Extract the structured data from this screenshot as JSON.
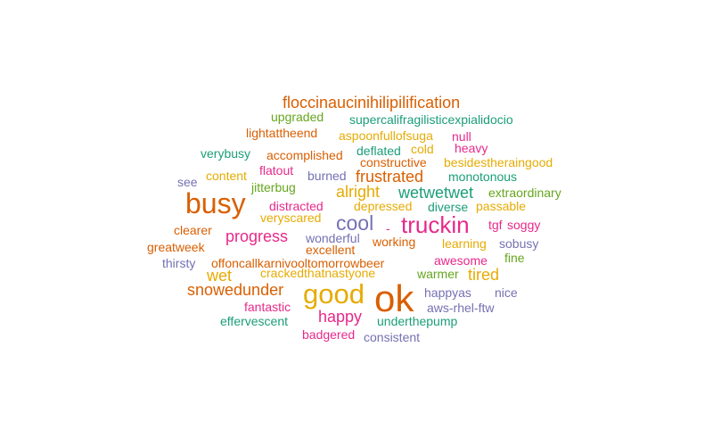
{
  "palette": {
    "orange": "#d95f02",
    "teal": "#1b9e77",
    "purple": "#7570b3",
    "pink": "#e7298a",
    "green": "#66a61e",
    "gold": "#e6ab02"
  },
  "words": [
    {
      "text": "floccinaucinihilipilification",
      "color": "orange"
    },
    {
      "text": "upgraded",
      "color": "green"
    },
    {
      "text": "supercalifragilisticexpialidocio",
      "color": "teal"
    },
    {
      "text": "lightattheend",
      "color": "orange"
    },
    {
      "text": "aspoonfullofsuga",
      "color": "gold"
    },
    {
      "text": "null",
      "color": "pink"
    },
    {
      "text": "verybusy",
      "color": "teal"
    },
    {
      "text": "accomplished",
      "color": "orange"
    },
    {
      "text": "deflated",
      "color": "teal"
    },
    {
      "text": "cold",
      "color": "gold"
    },
    {
      "text": "heavy",
      "color": "pink"
    },
    {
      "text": "flatout",
      "color": "pink"
    },
    {
      "text": "constructive",
      "color": "orange"
    },
    {
      "text": "besidestheraingood",
      "color": "gold"
    },
    {
      "text": "content",
      "color": "gold"
    },
    {
      "text": "burned",
      "color": "purple"
    },
    {
      "text": "frustrated",
      "color": "orange"
    },
    {
      "text": "monotonous",
      "color": "teal"
    },
    {
      "text": "see",
      "color": "purple"
    },
    {
      "text": "jitterbug",
      "color": "green"
    },
    {
      "text": "alright",
      "color": "gold"
    },
    {
      "text": "wetwetwet",
      "color": "teal"
    },
    {
      "text": "extraordinary",
      "color": "green"
    },
    {
      "text": "busy",
      "color": "orange"
    },
    {
      "text": "distracted",
      "color": "pink"
    },
    {
      "text": "depressed",
      "color": "gold"
    },
    {
      "text": "diverse",
      "color": "teal"
    },
    {
      "text": "passable",
      "color": "gold"
    },
    {
      "text": "veryscared",
      "color": "gold"
    },
    {
      "text": "cool",
      "color": "purple"
    },
    {
      "text": "truckin",
      "color": "pink"
    },
    {
      "text": "tgf",
      "color": "pink"
    },
    {
      "text": "soggy",
      "color": "pink"
    },
    {
      "text": "clearer",
      "color": "orange"
    },
    {
      "text": "-",
      "color": "pink"
    },
    {
      "text": "progress",
      "color": "pink"
    },
    {
      "text": "wonderful",
      "color": "purple"
    },
    {
      "text": "working",
      "color": "orange"
    },
    {
      "text": "learning",
      "color": "gold"
    },
    {
      "text": "sobusy",
      "color": "purple"
    },
    {
      "text": "greatweek",
      "color": "orange"
    },
    {
      "text": "excellent",
      "color": "orange"
    },
    {
      "text": "fine",
      "color": "green"
    },
    {
      "text": "thirsty",
      "color": "purple"
    },
    {
      "text": "offoncallkarnivooltomorrowbeer",
      "color": "orange"
    },
    {
      "text": "awesome",
      "color": "pink"
    },
    {
      "text": "wet",
      "color": "gold"
    },
    {
      "text": "crackedthatnastyone",
      "color": "gold"
    },
    {
      "text": "warmer",
      "color": "green"
    },
    {
      "text": "tired",
      "color": "gold"
    },
    {
      "text": "snowedunder",
      "color": "orange"
    },
    {
      "text": "good",
      "color": "gold"
    },
    {
      "text": "ok",
      "color": "orange"
    },
    {
      "text": "happyas",
      "color": "purple"
    },
    {
      "text": "nice",
      "color": "purple"
    },
    {
      "text": "fantastic",
      "color": "pink"
    },
    {
      "text": "aws-rhel-ftw",
      "color": "purple"
    },
    {
      "text": "happy",
      "color": "pink"
    },
    {
      "text": "effervescent",
      "color": "teal"
    },
    {
      "text": "underthepump",
      "color": "teal"
    },
    {
      "text": "badgered",
      "color": "pink"
    },
    {
      "text": "consistent",
      "color": "purple"
    }
  ]
}
